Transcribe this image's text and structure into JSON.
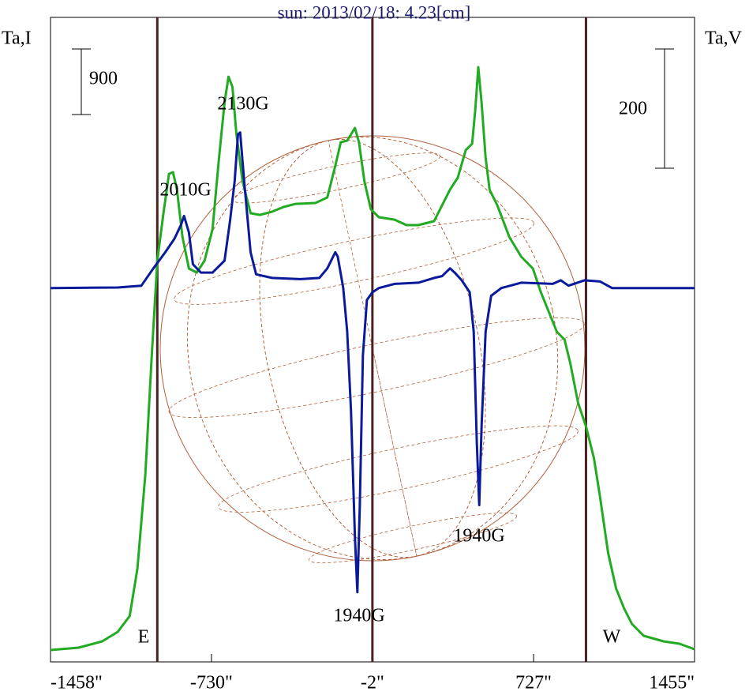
{
  "chart_data": {
    "type": "line",
    "title": "sun: 2013/02/18: 4.23[cm]",
    "ylabel": "Ta,I",
    "y2label": "Ta,V",
    "xlim": [
      -1458,
      1455
    ],
    "xticks": [
      {
        "value": -1458,
        "label": "-1458\""
      },
      {
        "value": -730,
        "label": "-730\""
      },
      {
        "value": -2,
        "label": "-2\""
      },
      {
        "value": 727,
        "label": "727\""
      },
      {
        "value": 1455,
        "label": "1455\""
      }
    ],
    "ylim": [
      0,
      8846
    ],
    "y2lim": [
      -627,
      454
    ],
    "y_scalebar": 900,
    "y2_scalebar": 200,
    "vlines": [
      -975,
      -2,
      964
    ],
    "limb_labels": [
      "E",
      "W"
    ],
    "annotations": [
      "2010G",
      "2130G",
      "1940G",
      "1940G"
    ],
    "series": [
      {
        "color": "#22aa22",
        "axis": "y",
        "x": [
          -1458,
          -1331,
          -1224,
          -1154,
          -1100,
          -1065,
          -1029,
          -1000,
          -975,
          -947,
          -922,
          -904,
          -886,
          -861,
          -832,
          -796,
          -761,
          -725,
          -696,
          -671,
          -653,
          -635,
          -617,
          -589,
          -553,
          -510,
          -456,
          -403,
          -349,
          -260,
          -206,
          -170,
          -145,
          -116,
          -81,
          -63,
          -38,
          -9,
          27,
          98,
          152,
          206,
          277,
          313,
          349,
          384,
          420,
          449,
          463,
          477,
          492,
          510,
          528,
          563,
          617,
          671,
          724,
          760,
          796,
          832,
          867,
          893,
          928,
          964,
          1000,
          1028,
          1064,
          1100,
          1136,
          1172,
          1225,
          1315,
          1386,
          1455
        ],
        "values": [
          163,
          195,
          282,
          412,
          629,
          1279,
          2580,
          4206,
          5507,
          6157,
          6699,
          6721,
          6482,
          5832,
          5398,
          5344,
          5507,
          5940,
          6916,
          7675,
          8032,
          7892,
          7241,
          6591,
          6157,
          6135,
          6179,
          6244,
          6287,
          6298,
          6374,
          6808,
          7133,
          7154,
          7328,
          7133,
          6591,
          6211,
          6103,
          6070,
          5995,
          5995,
          6049,
          6266,
          6482,
          6645,
          7024,
          7111,
          7566,
          8163,
          7675,
          6916,
          6482,
          6266,
          5832,
          5561,
          5398,
          5073,
          4802,
          4531,
          4423,
          4098,
          3556,
          3230,
          2797,
          2255,
          1496,
          1008,
          737,
          520,
          358,
          282,
          249,
          173
        ]
      },
      {
        "color": "#0a1a9a",
        "axis": "y2",
        "x": [
          -1458,
          -1154,
          -1047,
          -993,
          -939,
          -897,
          -868,
          -854,
          -832,
          -814,
          -778,
          -725,
          -671,
          -646,
          -625,
          -610,
          -600,
          -582,
          -553,
          -528,
          -456,
          -331,
          -242,
          -206,
          -170,
          -159,
          -134,
          -116,
          -99,
          -81,
          -70,
          -59,
          -45,
          -27,
          -2,
          27,
          98,
          206,
          277,
          313,
          349,
          370,
          402,
          438,
          456,
          470,
          481,
          492,
          510,
          535,
          581,
          671,
          814,
          850,
          885,
          957,
          1028,
          1082,
          1455
        ],
        "values": [
          0,
          1,
          4,
          33,
          60,
          83,
          106,
          121,
          93,
          40,
          26,
          26,
          46,
          113,
          179,
          258,
          261,
          179,
          60,
          23,
          17,
          15,
          17,
          33,
          60,
          53,
          0,
          -73,
          -205,
          -418,
          -510,
          -364,
          -113,
          -20,
          -7,
          0,
          7,
          9,
          17,
          20,
          33,
          26,
          13,
          -7,
          -73,
          -258,
          -364,
          -231,
          -73,
          -13,
          0,
          9,
          7,
          13,
          4,
          13,
          11,
          0,
          0
        ]
      }
    ]
  }
}
